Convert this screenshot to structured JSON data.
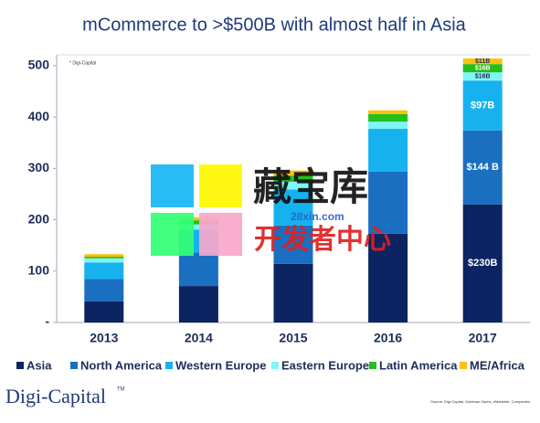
{
  "chart_data": {
    "type": "stacked_bar",
    "title": "mCommerce to >$500B with almost half in Asia",
    "note": "* Digi-Capital",
    "categories": [
      "2013",
      "2014",
      "2015",
      "2016",
      "2017"
    ],
    "series": [
      {
        "name": "Asia",
        "color": "#0c2461",
        "values": [
          41,
          71,
          114,
          173,
          230
        ],
        "value_labels": [
          null,
          null,
          null,
          null,
          "$230B"
        ]
      },
      {
        "name": "North America",
        "color": "#1a6fc1",
        "values": [
          44,
          65,
          75,
          121,
          144
        ],
        "value_labels": [
          null,
          null,
          null,
          null,
          "$144 B"
        ]
      },
      {
        "name": "Western Europe",
        "color": "#16b2ef",
        "values": [
          32,
          45,
          70,
          83,
          97
        ],
        "value_labels": [
          null,
          null,
          null,
          null,
          "$97B"
        ]
      },
      {
        "name": "Eastern Europe",
        "color": "#80f5f5",
        "values": [
          8,
          10,
          15,
          14,
          16
        ],
        "value_labels": [
          null,
          null,
          null,
          null,
          "$16B"
        ]
      },
      {
        "name": "Latin America",
        "color": "#21c01b",
        "values": [
          3,
          8,
          12,
          15,
          16
        ],
        "value_labels": [
          null,
          null,
          null,
          null,
          "$16B"
        ]
      },
      {
        "name": "ME/Africa",
        "color": "#fec010",
        "values": [
          5,
          6,
          10,
          7,
          11
        ],
        "value_labels": [
          null,
          null,
          null,
          null,
          "$11B"
        ]
      }
    ],
    "ylim": [
      0,
      530
    ],
    "yticks": [
      {
        "value": 0,
        "label": "-"
      },
      100,
      200,
      300,
      400,
      500
    ],
    "grid": false,
    "legend": "bottom"
  },
  "footer": {
    "logo": "Digi-Capital",
    "trademark": "TM",
    "source": "Source: Digi-Capital, Goldman Sachs, eMarketer, Companies"
  },
  "watermark": {
    "title": "藏宝库",
    "url": "28xin.com",
    "subtitle": "开发者中心"
  }
}
